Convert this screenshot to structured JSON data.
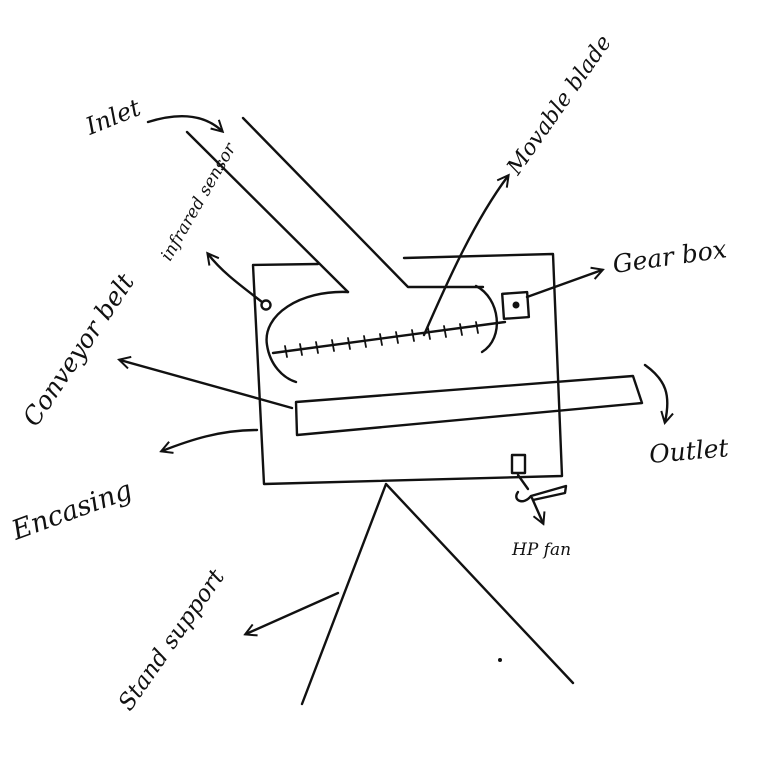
{
  "diagram": {
    "labels": {
      "inlet": "Inlet",
      "infrared_sensor": "infrared sensor",
      "movable_blade": "Movable blade",
      "gear_box": "Gear box",
      "conveyor_belt": "Conveyor belt",
      "encasing": "Encasing",
      "outlet": "Outlet",
      "hp_fan": "HP fan",
      "stand_support": "Stand support"
    }
  }
}
